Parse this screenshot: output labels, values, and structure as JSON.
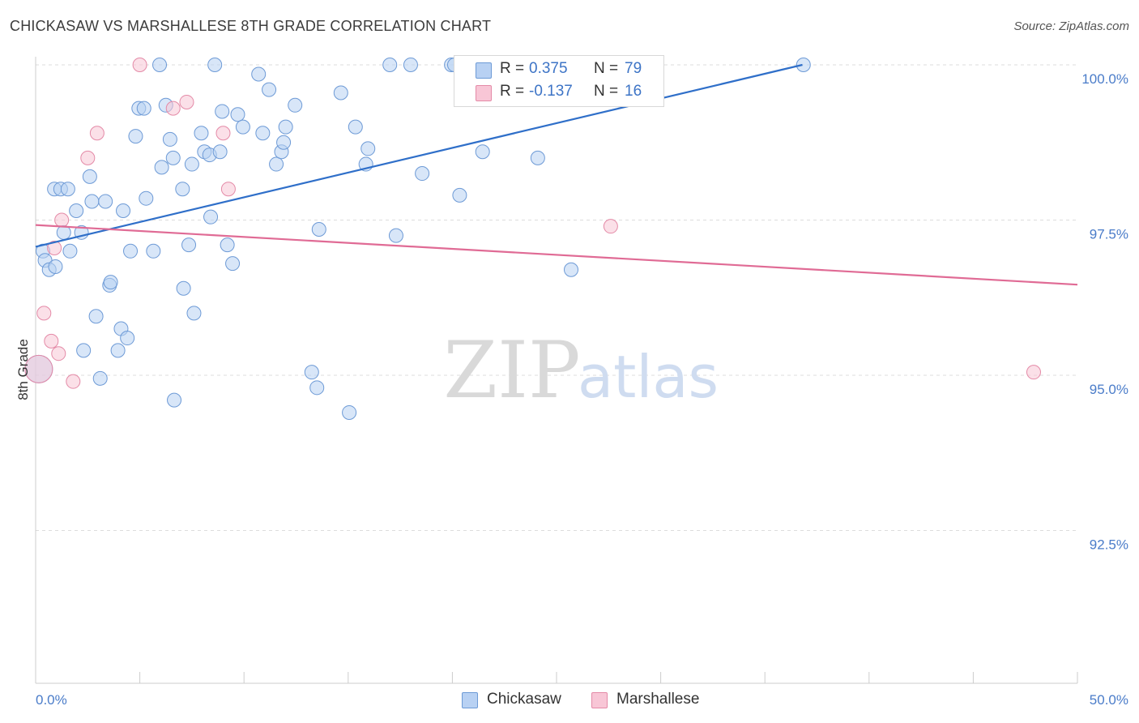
{
  "header": {
    "title": "CHICKASAW VS MARSHALLESE 8TH GRADE CORRELATION CHART",
    "source": "Source: ZipAtlas.com"
  },
  "watermark": {
    "zip": "ZIP",
    "atlas": "atlas"
  },
  "colors": {
    "chickasaw_fill": "#b8d1f3",
    "chickasaw_stroke": "#6d9ad6",
    "chickasaw_line": "#2f6fc9",
    "marshallese_fill": "#f8c6d6",
    "marshallese_stroke": "#e48aa7",
    "marshallese_line": "#e06b95",
    "tick_text": "#4a7cc9",
    "grid": "#dddddd"
  },
  "legend": {
    "rows": [
      {
        "r_label": "R =",
        "r_value": "0.375",
        "n_label": "N =",
        "n_value": "79"
      },
      {
        "r_label": "R =",
        "r_value": "-0.137",
        "n_label": "N =",
        "n_value": "16"
      }
    ]
  },
  "bottom_legend": [
    {
      "label": "Chickasaw"
    },
    {
      "label": "Marshallese"
    }
  ],
  "chart_data": {
    "type": "scatter",
    "title": "CHICKASAW VS MARSHALLESE 8TH GRADE CORRELATION CHART",
    "xlabel": "",
    "ylabel": "8th Grade",
    "xlim": [
      0,
      50
    ],
    "ylim": [
      90.8,
      100.6
    ],
    "x_tick_labels": [
      "0.0%",
      "50.0%"
    ],
    "y_ticks": [
      {
        "value": 100.0,
        "label": "100.0%"
      },
      {
        "value": 97.5,
        "label": "97.5%"
      },
      {
        "value": 95.0,
        "label": "95.0%"
      },
      {
        "value": 92.5,
        "label": "92.5%"
      }
    ],
    "grid": true,
    "legend_position": "top-center",
    "series": [
      {
        "name": "Chickasaw",
        "r": 0.375,
        "n": 79,
        "trend": {
          "x": [
            0.0,
            36.8
          ],
          "y": [
            97.07,
            100.0
          ]
        },
        "points": [
          [
            0.35,
            97.0
          ],
          [
            0.45,
            96.85
          ],
          [
            0.65,
            96.7
          ],
          [
            0.95,
            96.75
          ],
          [
            0.9,
            98.0
          ],
          [
            1.2,
            98.0
          ],
          [
            1.55,
            98.0
          ],
          [
            1.35,
            97.3
          ],
          [
            1.65,
            97.0
          ],
          [
            1.95,
            97.65
          ],
          [
            2.2,
            97.3
          ],
          [
            2.3,
            95.4
          ],
          [
            2.6,
            98.2
          ],
          [
            2.7,
            97.8
          ],
          [
            2.9,
            95.95
          ],
          [
            3.1,
            94.95
          ],
          [
            3.35,
            97.8
          ],
          [
            3.55,
            96.45
          ],
          [
            3.6,
            96.5
          ],
          [
            3.95,
            95.4
          ],
          [
            4.1,
            95.75
          ],
          [
            4.2,
            97.65
          ],
          [
            4.4,
            95.6
          ],
          [
            4.55,
            97.0
          ],
          [
            4.8,
            98.85
          ],
          [
            4.95,
            99.3
          ],
          [
            5.2,
            99.3
          ],
          [
            5.3,
            97.85
          ],
          [
            5.65,
            97.0
          ],
          [
            5.95,
            100.0
          ],
          [
            6.05,
            98.35
          ],
          [
            6.25,
            99.35
          ],
          [
            6.45,
            98.8
          ],
          [
            6.6,
            98.5
          ],
          [
            6.65,
            94.6
          ],
          [
            7.05,
            98.0
          ],
          [
            7.1,
            96.4
          ],
          [
            7.35,
            97.1
          ],
          [
            7.5,
            98.4
          ],
          [
            7.6,
            96.0
          ],
          [
            7.95,
            98.9
          ],
          [
            8.1,
            98.6
          ],
          [
            8.35,
            98.55
          ],
          [
            8.4,
            97.55
          ],
          [
            8.6,
            100.0
          ],
          [
            8.85,
            98.6
          ],
          [
            8.95,
            99.25
          ],
          [
            9.2,
            97.1
          ],
          [
            9.45,
            96.8
          ],
          [
            9.7,
            99.2
          ],
          [
            9.95,
            99.0
          ],
          [
            10.7,
            99.85
          ],
          [
            10.9,
            98.9
          ],
          [
            11.2,
            99.6
          ],
          [
            11.55,
            98.4
          ],
          [
            11.8,
            98.6
          ],
          [
            11.9,
            98.75
          ],
          [
            12.0,
            99.0
          ],
          [
            12.45,
            99.35
          ],
          [
            13.25,
            95.05
          ],
          [
            13.5,
            94.8
          ],
          [
            13.6,
            97.35
          ],
          [
            14.65,
            99.55
          ],
          [
            15.05,
            94.4
          ],
          [
            15.35,
            99.0
          ],
          [
            15.85,
            98.4
          ],
          [
            15.95,
            98.65
          ],
          [
            17.0,
            100.0
          ],
          [
            17.3,
            97.25
          ],
          [
            18.0,
            100.0
          ],
          [
            18.55,
            98.25
          ],
          [
            19.95,
            100.0
          ],
          [
            20.1,
            100.0
          ],
          [
            20.35,
            97.9
          ],
          [
            21.45,
            98.6
          ],
          [
            24.1,
            98.5
          ],
          [
            25.7,
            96.7
          ],
          [
            36.85,
            100.0
          ],
          [
            0.15,
            95.1
          ]
        ]
      },
      {
        "name": "Marshallese",
        "r": -0.137,
        "n": 16,
        "trend": {
          "x": [
            0.0,
            50.0
          ],
          "y": [
            97.42,
            96.46
          ]
        },
        "points": [
          [
            0.15,
            95.1
          ],
          [
            0.4,
            96.0
          ],
          [
            0.75,
            95.55
          ],
          [
            1.1,
            95.35
          ],
          [
            0.9,
            97.05
          ],
          [
            1.25,
            97.5
          ],
          [
            1.8,
            94.9
          ],
          [
            2.5,
            98.5
          ],
          [
            2.95,
            98.9
          ],
          [
            5.0,
            100.0
          ],
          [
            6.6,
            99.3
          ],
          [
            7.25,
            99.4
          ],
          [
            9.0,
            98.9
          ],
          [
            9.25,
            98.0
          ],
          [
            27.6,
            97.4
          ],
          [
            47.9,
            95.05
          ]
        ]
      }
    ]
  }
}
